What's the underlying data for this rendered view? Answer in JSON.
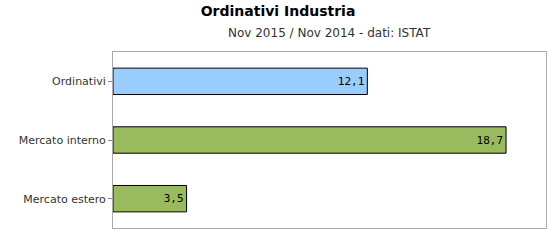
{
  "chart_data": {
    "type": "bar",
    "orientation": "horizontal",
    "title": "Ordinativi Industria",
    "subtitle": "Nov 2015 / Nov 2014 - dati: ISTAT",
    "categories": [
      "Ordinativi",
      "Mercato interno",
      "Mercato estero"
    ],
    "values": [
      12.1,
      18.7,
      3.5
    ],
    "value_labels": [
      "12,1",
      "18,7",
      "3,5"
    ],
    "colors": [
      "#99ccff",
      "#99bb5e",
      "#99bb5e"
    ],
    "xlim": [
      0,
      20.6
    ],
    "xticks": [],
    "grid": false,
    "data_labels": true,
    "tick_labels": "y"
  }
}
